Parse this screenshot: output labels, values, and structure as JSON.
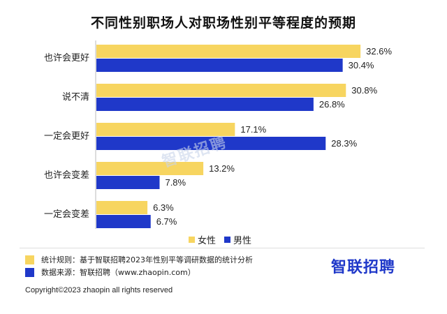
{
  "watermark": "智联招聘",
  "legend": {
    "female": "女性",
    "male": "男性"
  },
  "footer": {
    "rule": "统计规则：基于智联招聘2023年性别平等调研数据的统计分析",
    "source": "数据来源：智联招聘（www.zhaopin.com）",
    "logo": "智联招聘",
    "copyright": "Copyright©2023 zhaopin all rights reserved"
  },
  "colors": {
    "female": "#f7d560",
    "male": "#1f38c9"
  },
  "chart_data": {
    "type": "bar",
    "orientation": "horizontal",
    "title": "不同性别职场人对职场性别平等程度的预期",
    "categories": [
      "也许会更好",
      "说不清",
      "一定会更好",
      "也许会变差",
      "一定会变差"
    ],
    "series": [
      {
        "name": "女性",
        "values": [
          32.6,
          30.8,
          17.1,
          13.2,
          6.3
        ]
      },
      {
        "name": "男性",
        "values": [
          30.4,
          26.8,
          28.3,
          7.8,
          6.7
        ]
      }
    ],
    "value_suffix": "%",
    "legend_position": "bottom",
    "grid": false
  }
}
